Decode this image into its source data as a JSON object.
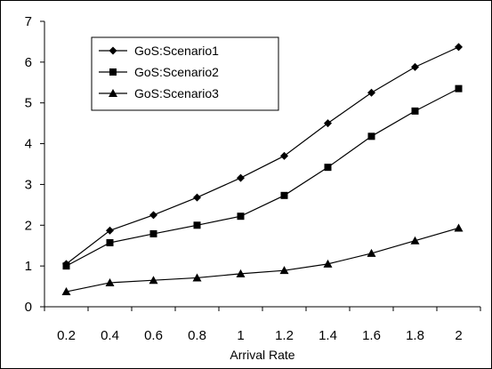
{
  "chart_data": {
    "type": "line",
    "title": "",
    "xlabel": "Arrival Rate",
    "ylabel": "",
    "x": [
      0.2,
      0.4,
      0.6,
      0.8,
      1,
      1.2,
      1.4,
      1.6,
      1.8,
      2
    ],
    "x_tick_labels": [
      "0.2",
      "0.4",
      "0.6",
      "0.8",
      "1",
      "1.2",
      "1.4",
      "1.6",
      "1.8",
      "2"
    ],
    "ylim": [
      0,
      7
    ],
    "y_ticks": [
      0,
      1,
      2,
      3,
      4,
      5,
      6,
      7
    ],
    "y_tick_labels": [
      "0",
      "1",
      "2",
      "3",
      "4",
      "5",
      "6",
      "7"
    ],
    "grid": false,
    "legend_position": "top-left",
    "series": [
      {
        "name": "GoS:Scenario1",
        "marker": "diamond",
        "values": [
          1.05,
          1.87,
          2.25,
          2.68,
          3.16,
          3.7,
          4.5,
          5.25,
          5.88,
          6.37
        ]
      },
      {
        "name": "GoS:Scenario2",
        "marker": "square",
        "values": [
          1.0,
          1.57,
          1.79,
          2.0,
          2.22,
          2.73,
          3.42,
          4.18,
          4.8,
          5.35
        ]
      },
      {
        "name": "GoS:Scenario3",
        "marker": "triangle",
        "values": [
          0.37,
          0.59,
          0.65,
          0.71,
          0.81,
          0.89,
          1.05,
          1.31,
          1.62,
          1.93
        ]
      }
    ],
    "line_color": "#000000"
  }
}
